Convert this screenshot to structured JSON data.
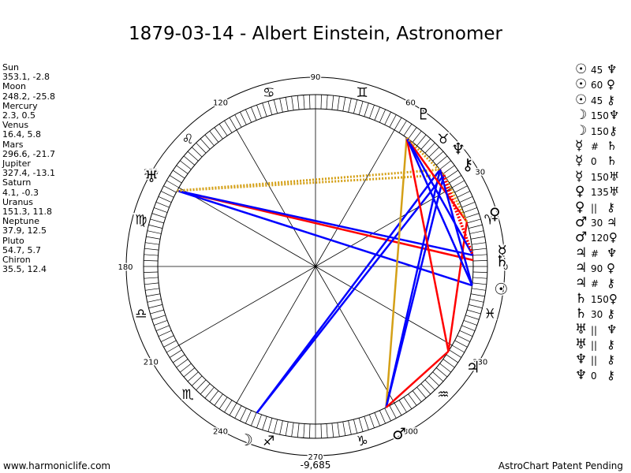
{
  "title": "1879-03-14 - Albert Einstein, Astronomer",
  "footer": {
    "left": "www.harmoniclife.com",
    "right": "AstroChart Patent Pending",
    "bottom_value": "-9,685"
  },
  "positions": [
    {
      "name": "Sun",
      "value": "353.1, -2.8"
    },
    {
      "name": "Moon",
      "value": "248.2, -25.8"
    },
    {
      "name": "Mercury",
      "value": "2.3, 0.5"
    },
    {
      "name": "Venus",
      "value": "16.4, 5.8"
    },
    {
      "name": "Mars",
      "value": "296.6, -21.7"
    },
    {
      "name": "Jupiter",
      "value": "327.4, -13.1"
    },
    {
      "name": "Saturn",
      "value": "4.1, -0.3"
    },
    {
      "name": "Uranus",
      "value": "151.3, 11.8"
    },
    {
      "name": "Neptune",
      "value": "37.9, 12.5"
    },
    {
      "name": "Pluto",
      "value": "54.7, 5.7"
    },
    {
      "name": "Chiron",
      "value": "35.5, 12.4"
    }
  ],
  "aspects": [
    {
      "p1": "☉",
      "value": "45",
      "p2": "♆"
    },
    {
      "p1": "☉",
      "value": "60",
      "p2": "♀"
    },
    {
      "p1": "☉",
      "value": "45",
      "p2": "⚷"
    },
    {
      "p1": "☽",
      "value": "150",
      "p2": "♆"
    },
    {
      "p1": "☽",
      "value": "150",
      "p2": "⚷"
    },
    {
      "p1": "☿",
      "value": "#",
      "p2": "♄"
    },
    {
      "p1": "☿",
      "value": "0",
      "p2": "♄"
    },
    {
      "p1": "☿",
      "value": "150",
      "p2": "♅"
    },
    {
      "p1": "♀",
      "value": "135",
      "p2": "♅"
    },
    {
      "p1": "♀",
      "value": "||",
      "p2": "⚷"
    },
    {
      "p1": "♂",
      "value": "30",
      "p2": "♃"
    },
    {
      "p1": "♂",
      "value": "120",
      "p2": "♀"
    },
    {
      "p1": "♃",
      "value": "#",
      "p2": "♆"
    },
    {
      "p1": "♃",
      "value": "90",
      "p2": "♀"
    },
    {
      "p1": "♃",
      "value": "#",
      "p2": "⚷"
    },
    {
      "p1": "♄",
      "value": "150",
      "p2": "♀"
    },
    {
      "p1": "♄",
      "value": "30",
      "p2": "⚷"
    },
    {
      "p1": "♅",
      "value": "||",
      "p2": "♆"
    },
    {
      "p1": "♅",
      "value": "||",
      "p2": "⚷"
    },
    {
      "p1": "♆",
      "value": "||",
      "p2": "⚷"
    },
    {
      "p1": "♆",
      "value": "0",
      "p2": "⚷"
    }
  ],
  "wheel": {
    "degree_labels": [
      {
        "deg": 0,
        "text": "0"
      },
      {
        "deg": 30,
        "text": "30"
      },
      {
        "deg": 60,
        "text": "60"
      },
      {
        "deg": 90,
        "text": "90"
      },
      {
        "deg": 120,
        "text": "120"
      },
      {
        "deg": 150,
        "text": "150"
      },
      {
        "deg": 180,
        "text": "180"
      },
      {
        "deg": 210,
        "text": "210"
      },
      {
        "deg": 240,
        "text": "240"
      },
      {
        "deg": 270,
        "text": "270"
      },
      {
        "deg": 300,
        "text": "300"
      },
      {
        "deg": 330,
        "text": "330"
      }
    ],
    "signs": [
      {
        "name": "aries",
        "glyph": "♈"
      },
      {
        "name": "taurus",
        "glyph": "♉"
      },
      {
        "name": "gemini",
        "glyph": "♊"
      },
      {
        "name": "cancer",
        "glyph": "♋"
      },
      {
        "name": "leo",
        "glyph": "♌"
      },
      {
        "name": "virgo",
        "glyph": "♍"
      },
      {
        "name": "libra",
        "glyph": "♎"
      },
      {
        "name": "scorpio",
        "glyph": "♏"
      },
      {
        "name": "sagittarius",
        "glyph": "♐"
      },
      {
        "name": "capricorn",
        "glyph": "♑"
      },
      {
        "name": "aquarius",
        "glyph": "♒"
      },
      {
        "name": "pisces",
        "glyph": "♓"
      }
    ],
    "planets": [
      {
        "name": "sun",
        "glyph": "☉",
        "lon": 353.1
      },
      {
        "name": "moon",
        "glyph": "☽",
        "lon": 248.2
      },
      {
        "name": "mercury",
        "glyph": "☿",
        "lon": 2.3
      },
      {
        "name": "venus",
        "glyph": "♀",
        "lon": 16.4
      },
      {
        "name": "mars",
        "glyph": "♂",
        "lon": 296.6
      },
      {
        "name": "jupiter",
        "glyph": "♃",
        "lon": 327.4
      },
      {
        "name": "saturn",
        "glyph": "♄",
        "lon": 4.1
      },
      {
        "name": "uranus",
        "glyph": "♅",
        "lon": 151.3
      },
      {
        "name": "neptune",
        "glyph": "♆",
        "lon": 37.9
      },
      {
        "name": "pluto",
        "glyph": "♇",
        "lon": 54.7
      },
      {
        "name": "chiron",
        "glyph": "⚷",
        "lon": 35.5
      }
    ],
    "aspect_lines": [
      {
        "from": "uranus",
        "to": "mercury",
        "color": "#ff0000",
        "dashed": false
      },
      {
        "from": "uranus",
        "to": "saturn",
        "color": "#0000ff",
        "dashed": false
      },
      {
        "from": "uranus",
        "to": "sun",
        "color": "#0000ff",
        "dashed": false
      },
      {
        "from": "uranus",
        "to": "neptune",
        "color": "#d4a017",
        "dashed": true
      },
      {
        "from": "uranus",
        "to": "chiron",
        "color": "#d4a017",
        "dashed": true
      },
      {
        "from": "moon",
        "to": "neptune",
        "color": "#0000ff",
        "dashed": false
      },
      {
        "from": "moon",
        "to": "chiron",
        "color": "#0000ff",
        "dashed": false
      },
      {
        "from": "mars",
        "to": "pluto",
        "color": "#d4a017",
        "dashed": false
      },
      {
        "from": "mars",
        "to": "chiron",
        "color": "#0000ff",
        "dashed": false
      },
      {
        "from": "mars",
        "to": "neptune",
        "color": "#0000ff",
        "dashed": false
      },
      {
        "from": "jupiter",
        "to": "mars",
        "color": "#ff0000",
        "dashed": false
      },
      {
        "from": "jupiter",
        "to": "pluto",
        "color": "#ff0000",
        "dashed": false
      },
      {
        "from": "jupiter",
        "to": "venus",
        "color": "#ff0000",
        "dashed": false
      },
      {
        "from": "pluto",
        "to": "venus",
        "color": "#ff0000",
        "dashed": false
      },
      {
        "from": "pluto",
        "to": "saturn",
        "color": "#0000ff",
        "dashed": false
      },
      {
        "from": "pluto",
        "to": "sun",
        "color": "#0000ff",
        "dashed": false
      },
      {
        "from": "pluto",
        "to": "chiron",
        "color": "#d4a017",
        "dashed": true
      },
      {
        "from": "chiron",
        "to": "venus",
        "color": "#d4a017",
        "dashed": true
      },
      {
        "from": "chiron",
        "to": "saturn",
        "color": "#ff0000",
        "dashed": true
      },
      {
        "from": "neptune",
        "to": "saturn",
        "color": "#ff0000",
        "dashed": true
      },
      {
        "from": "neptune",
        "to": "sun",
        "color": "#0000ff",
        "dashed": false
      }
    ]
  }
}
